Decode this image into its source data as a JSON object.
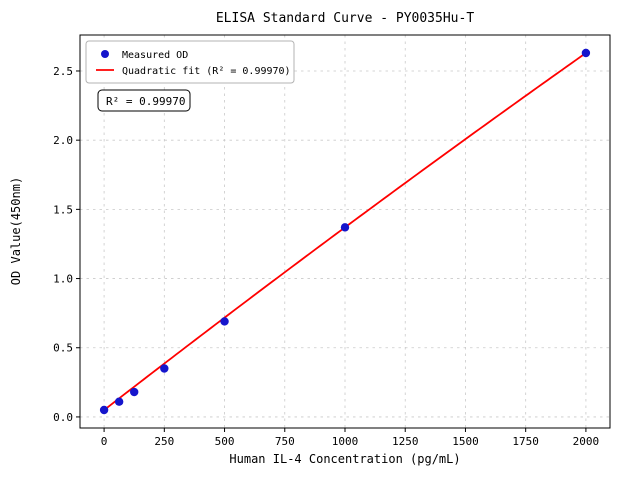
{
  "chart_data": {
    "type": "scatter",
    "title": "ELISA Standard Curve - PY0035Hu-T",
    "xlabel": "Human IL-4 Concentration (pg/mL)",
    "ylabel": "OD Value(450nm)",
    "xlim": [
      -100,
      2100
    ],
    "ylim": [
      -0.08,
      2.76
    ],
    "grid": true,
    "legend_position": "upper-left",
    "xticks": [
      0,
      250,
      500,
      750,
      1000,
      1250,
      1500,
      1750,
      2000
    ],
    "xtick_labels": [
      "0",
      "250",
      "500",
      "750",
      "1000",
      "1250",
      "1500",
      "1750",
      "2000"
    ],
    "yticks": [
      0.0,
      0.5,
      1.0,
      1.5,
      2.0,
      2.5
    ],
    "ytick_labels": [
      "0.0",
      "0.5",
      "1.0",
      "1.5",
      "2.0",
      "2.5"
    ],
    "points": {
      "name": "Measured OD",
      "color": "#1515cc",
      "x": [
        0,
        62.5,
        125,
        250,
        500,
        1000,
        2000
      ],
      "y": [
        0.05,
        0.11,
        0.18,
        0.35,
        0.69,
        1.37,
        2.63
      ]
    },
    "fit": {
      "name": "Quadratic fit (R² = 0.99970)",
      "color": "#ff0000",
      "coeffs": {
        "a": 0.05,
        "b": 0.00135,
        "c": -3e-08
      },
      "range": [
        0,
        2000
      ]
    },
    "annotation": "R² = 0.99970"
  }
}
